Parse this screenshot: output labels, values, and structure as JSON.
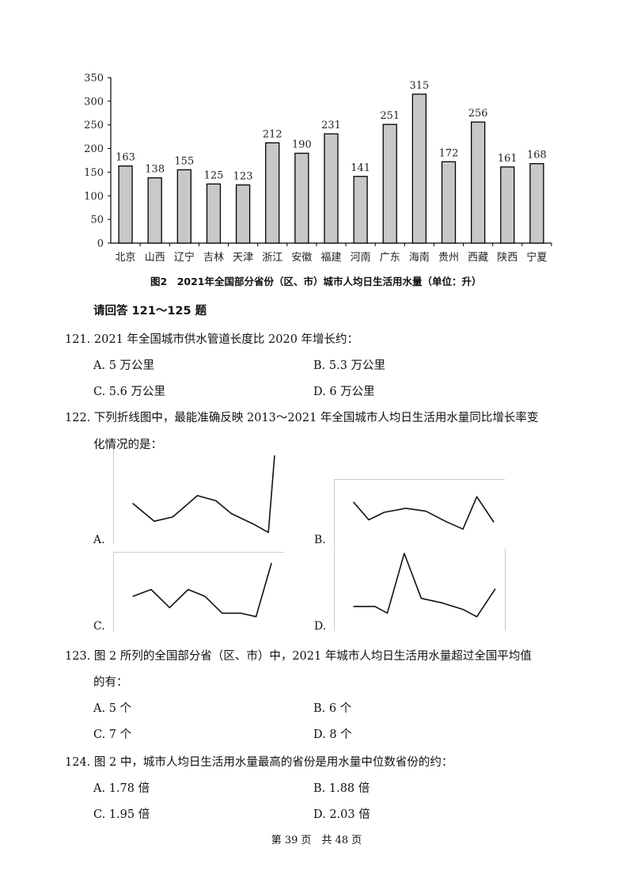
{
  "chart_data": {
    "type": "bar",
    "categories": [
      "北京",
      "山西",
      "辽宁",
      "吉林",
      "天津",
      "浙江",
      "安徽",
      "福建",
      "河南",
      "广东",
      "海南",
      "贵州",
      "西藏",
      "陕西",
      "宁夏"
    ],
    "values": [
      163,
      138,
      155,
      125,
      123,
      212,
      190,
      231,
      141,
      251,
      315,
      172,
      256,
      161,
      168
    ],
    "ylim": [
      0,
      350
    ],
    "yticks": [
      0,
      50,
      100,
      150,
      200,
      250,
      300,
      350
    ],
    "title": "图2　2021年全国部分省份（区、市）城市人均日生活用水量（单位：升）",
    "bar_color": "#c8c8c8",
    "grid": false
  },
  "instruction": "请回答 121～125 题",
  "questions": [
    {
      "lines": [
        "121. 2021 年全国城市供水管道长度比 2020 年增长约："
      ],
      "options": [
        {
          "label": "A.",
          "text": "5 万公里"
        },
        {
          "label": "B.",
          "text": "5.3 万公里"
        },
        {
          "label": "C.",
          "text": "5.6 万公里"
        },
        {
          "label": "D.",
          "text": "6 万公里"
        }
      ]
    },
    {
      "lines": [
        "122. 下列折线图中，最能准确反映 2013～2021 年全国城市人均日生活用水量同比增长率变",
        "化情况的是："
      ],
      "line_options": [
        {
          "label": "A.",
          "points": [
            [
              0.08,
              0.58
            ],
            [
              0.22,
              0.79
            ],
            [
              0.34,
              0.74
            ],
            [
              0.5,
              0.49
            ],
            [
              0.62,
              0.55
            ],
            [
              0.72,
              0.7
            ],
            [
              0.86,
              0.82
            ],
            [
              0.96,
              0.92
            ],
            [
              1.0,
              0.02
            ]
          ]
        },
        {
          "label": "B.",
          "points": [
            [
              0.08,
              0.3
            ],
            [
              0.18,
              0.61
            ],
            [
              0.28,
              0.48
            ],
            [
              0.42,
              0.41
            ],
            [
              0.55,
              0.46
            ],
            [
              0.68,
              0.64
            ],
            [
              0.79,
              0.77
            ],
            [
              0.88,
              0.21
            ],
            [
              0.99,
              0.65
            ]
          ]
        },
        {
          "label": "C.",
          "points": [
            [
              0.08,
              0.56
            ],
            [
              0.2,
              0.46
            ],
            [
              0.32,
              0.72
            ],
            [
              0.44,
              0.46
            ],
            [
              0.55,
              0.56
            ],
            [
              0.66,
              0.8
            ],
            [
              0.78,
              0.8
            ],
            [
              0.88,
              0.85
            ],
            [
              0.98,
              0.08
            ]
          ]
        },
        {
          "label": "D.",
          "points": [
            [
              0.08,
              0.73
            ],
            [
              0.22,
              0.73
            ],
            [
              0.3,
              0.82
            ],
            [
              0.41,
              0.01
            ],
            [
              0.52,
              0.62
            ],
            [
              0.65,
              0.68
            ],
            [
              0.79,
              0.77
            ],
            [
              0.88,
              0.87
            ],
            [
              1.0,
              0.49
            ]
          ]
        }
      ]
    },
    {
      "lines": [
        "123. 图 2 所列的全国部分省（区、市）中，2021 年城市人均日生活用水量超过全国平均值",
        "的有："
      ],
      "options": [
        {
          "label": "A.",
          "text": "5 个"
        },
        {
          "label": "B.",
          "text": "6 个"
        },
        {
          "label": "C.",
          "text": "7 个"
        },
        {
          "label": "D.",
          "text": "8 个"
        }
      ]
    },
    {
      "lines": [
        "124. 图 2 中，城市人均日生活用水量最高的省份是用水量中位数省份的约："
      ],
      "options": [
        {
          "label": "A.",
          "text": "1.78 倍"
        },
        {
          "label": "B.",
          "text": "1.88 倍"
        },
        {
          "label": "C.",
          "text": "1.95 倍"
        },
        {
          "label": "D.",
          "text": "2.03 倍"
        }
      ]
    }
  ],
  "footer": "第 39 页　共 48 页"
}
